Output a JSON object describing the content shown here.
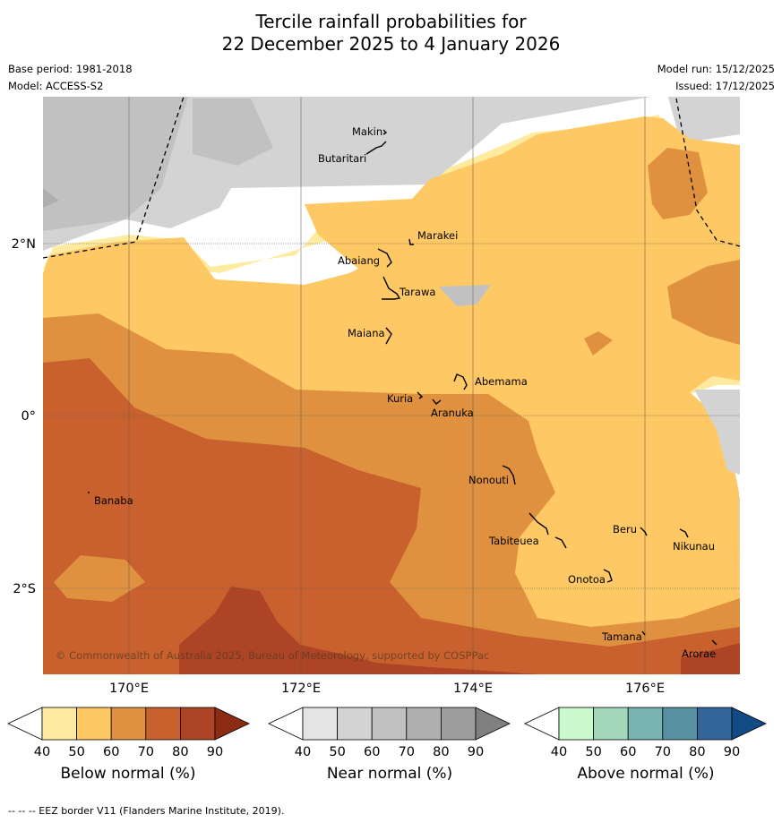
{
  "title": {
    "line1": "Tercile rainfall probabilities for",
    "line2": "22 December 2025 to 4 January 2026"
  },
  "meta": {
    "base_period": "Base period: 1981-2018",
    "model": "Model: ACCESS-S2",
    "model_run": "Model run: 15/12/2025",
    "issued": "Issued: 17/12/2025"
  },
  "axes": {
    "lat_labels": [
      "2°N",
      "0°",
      "2°S"
    ],
    "lon_labels": [
      "170°E",
      "172°E",
      "174°E",
      "176°E"
    ]
  },
  "places": {
    "makin": "Makin",
    "butaritari": "Butaritari",
    "marakei": "Marakei",
    "abaiang": "Abaiang",
    "tarawa": "Tarawa",
    "maiana": "Maiana",
    "abemama": "Abemama",
    "kuria": "Kuria",
    "aranuka": "Aranuka",
    "banaba": "Banaba",
    "nonouti": "Nonouti",
    "beru": "Beru",
    "tabiteuea": "Tabiteuea",
    "nikunau": "Nikunau",
    "onotoa": "Onotoa",
    "tamana": "Tamana",
    "arorae": "Arorae"
  },
  "copyright": "© Commonwealth of Australia 2025, Bureau of Meteorology, supported by COSPPac",
  "colorbars": {
    "below": {
      "label": "Below normal (%)",
      "ticks": [
        "40",
        "50",
        "60",
        "70",
        "80",
        "90"
      ],
      "colors": [
        "#ffffff",
        "#feeb9f",
        "#fec964",
        "#e09140",
        "#c8612e",
        "#ac4425",
        "#8c2b14"
      ]
    },
    "near": {
      "label": "Near normal (%)",
      "ticks": [
        "40",
        "50",
        "60",
        "70",
        "80",
        "90"
      ],
      "colors": [
        "#ffffff",
        "#e4e4e4",
        "#d3d3d3",
        "#c1c1c1",
        "#afafaf",
        "#9e9e9e",
        "#808080"
      ]
    },
    "above": {
      "label": "Above normal (%)",
      "ticks": [
        "40",
        "50",
        "60",
        "70",
        "80",
        "90"
      ],
      "colors": [
        "#ffffff",
        "#ccf9cd",
        "#a3d7bc",
        "#7ab4b0",
        "#5791a1",
        "#326599",
        "#124a86"
      ]
    }
  },
  "footer": "--  --  -- EEZ border V11 (Flanders Marine Institute, 2019)."
}
